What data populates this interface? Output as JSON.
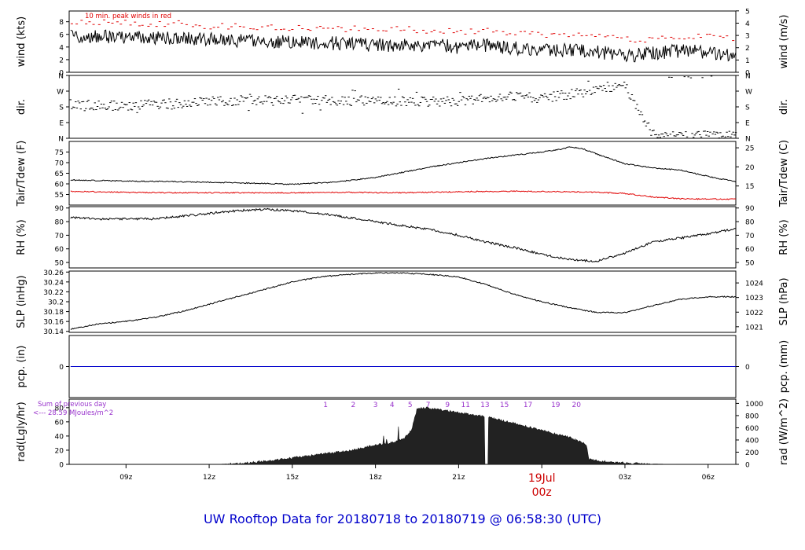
{
  "title": "UW Rooftop Data for 20180718  to  20180719 @ 06:58:30  (UTC)",
  "colors": {
    "primary": "#000000",
    "peak": "#e00000",
    "precip": "#0000cc",
    "annotation": "#9933cc",
    "date": "#cc0000",
    "title": "#0000cc",
    "axis": "#000000"
  },
  "chart_data": [
    {
      "type": "line",
      "panel": "wind",
      "ylabel_left": "wind (kts)",
      "ylabel_right": "wind (m/s)",
      "ylim": [
        0,
        9.7
      ],
      "yticks_left": [
        0,
        2,
        4,
        6,
        8
      ],
      "right_ticks": [
        {
          "label": "0",
          "v": 0
        },
        {
          "label": "1",
          "v": 1.944
        },
        {
          "label": "2",
          "v": 3.888
        },
        {
          "label": "3",
          "v": 5.832
        },
        {
          "label": "4",
          "v": 7.776
        },
        {
          "label": "5",
          "v": 9.72
        }
      ],
      "annotation": "10 min. peak winds in red",
      "series": [
        {
          "key": "wind",
          "style": "line",
          "color": "#000000",
          "x": [
            7.0,
            8.0,
            9.0,
            10.0,
            11.0,
            12.0,
            13.0,
            14.0,
            15.0,
            16.0,
            17.0,
            18.0,
            19.0,
            20.0,
            21.0,
            22.0,
            23.0,
            24.0,
            25.0,
            26.0,
            27.0,
            28.0,
            29.0,
            30.0,
            31.0
          ],
          "y": [
            5.8,
            5.6,
            5.6,
            5.4,
            5.5,
            5.2,
            5.0,
            4.9,
            4.8,
            4.6,
            4.6,
            4.3,
            4.3,
            4.3,
            4.0,
            4.2,
            3.8,
            3.6,
            3.5,
            3.3,
            2.6,
            3.0,
            3.4,
            3.2,
            2.8
          ],
          "noise": 1.1
        },
        {
          "key": "peak",
          "style": "dash",
          "color": "#e00000",
          "x": [
            7.0,
            8.0,
            9.0,
            10.0,
            11.0,
            12.0,
            13.0,
            14.0,
            15.0,
            16.0,
            17.0,
            18.0,
            19.0,
            20.0,
            21.0,
            22.0,
            23.0,
            24.0,
            25.0,
            26.0,
            27.0,
            28.0,
            29.0,
            30.0,
            31.0
          ],
          "y": [
            8.0,
            7.9,
            7.9,
            7.7,
            7.7,
            7.3,
            7.3,
            7.1,
            7.1,
            7.0,
            6.9,
            6.8,
            6.8,
            6.6,
            6.4,
            6.5,
            6.3,
            6.0,
            5.8,
            5.7,
            5.1,
            5.3,
            5.7,
            5.6,
            5.2
          ],
          "noise": 0.5
        }
      ]
    },
    {
      "type": "scatter",
      "panel": "dir",
      "ylabel_left": "dir.",
      "ylabel_right": "dir.",
      "ylim": [
        0,
        360
      ],
      "left_ticks": [
        {
          "label": "N",
          "v": 0
        },
        {
          "label": "E",
          "v": 90
        },
        {
          "label": "S",
          "v": 180
        },
        {
          "label": "W",
          "v": 270
        },
        {
          "label": "N",
          "v": 360
        }
      ],
      "right_ticks": [
        {
          "label": "N",
          "v": 0
        },
        {
          "label": "E",
          "v": 90
        },
        {
          "label": "S",
          "v": 180
        },
        {
          "label": "W",
          "v": 270
        },
        {
          "label": "N",
          "v": 360
        }
      ],
      "series": [
        {
          "key": "direction",
          "style": "ticks",
          "color": "#000000",
          "x": [
            7.0,
            8.0,
            9.0,
            10.0,
            11.0,
            12.0,
            13.0,
            14.0,
            15.0,
            16.0,
            17.0,
            18.0,
            19.0,
            20.0,
            21.0,
            22.0,
            23.0,
            24.0,
            25.0,
            26.0,
            27.0,
            28.0,
            29.0,
            30.0,
            31.0
          ],
          "y": [
            195,
            190,
            185,
            195,
            200,
            210,
            215,
            220,
            220,
            220,
            215,
            215,
            210,
            210,
            215,
            225,
            240,
            230,
            250,
            270,
            300,
            20,
            10,
            15,
            20
          ],
          "noise": 28
        }
      ]
    },
    {
      "type": "line",
      "panel": "temp",
      "ylabel_left": "Tair/Tdew (F)",
      "ylabel_right": "Tair/Tdew (C)",
      "ylim": [
        50,
        80
      ],
      "yticks_left": [
        55,
        60,
        65,
        70,
        75
      ],
      "right_ticks": [
        {
          "label": "15",
          "v": 59
        },
        {
          "label": "20",
          "v": 68
        },
        {
          "label": "25",
          "v": 77
        }
      ],
      "series": [
        {
          "key": "tair",
          "style": "line",
          "color": "#000000",
          "x": [
            7.0,
            9.0,
            11.0,
            13.0,
            15.0,
            16.5,
            18.0,
            19.0,
            20.0,
            21.0,
            22.0,
            23.0,
            24.0,
            24.7,
            25.0,
            25.5,
            26.0,
            27.0,
            28.0,
            29.0,
            30.0,
            31.0
          ],
          "y": [
            61.8,
            61.3,
            61.0,
            60.5,
            59.8,
            60.8,
            63.0,
            65.5,
            68.0,
            70.0,
            72.0,
            73.5,
            75.0,
            76.3,
            77.5,
            76.5,
            74.0,
            69.5,
            67.5,
            66.5,
            63.5,
            61.0
          ],
          "noise": 0.25
        },
        {
          "key": "tdew",
          "style": "line",
          "color": "#e00000",
          "x": [
            7.0,
            9.0,
            11.0,
            13.0,
            15.0,
            17.0,
            19.0,
            21.0,
            23.0,
            25.0,
            26.0,
            27.0,
            28.0,
            29.0,
            30.0,
            31.0
          ],
          "y": [
            56.5,
            56.0,
            55.8,
            55.8,
            55.8,
            56.0,
            55.8,
            56.3,
            56.5,
            56.3,
            56.0,
            55.5,
            53.8,
            53.0,
            52.8,
            52.8
          ],
          "noise": 0.25
        }
      ]
    },
    {
      "type": "line",
      "panel": "rh",
      "ylabel_left": "RH (%)",
      "ylabel_right": "RH (%)",
      "ylim": [
        46,
        91
      ],
      "yticks_left": [
        50,
        60,
        70,
        80,
        90
      ],
      "right_ticks": [
        {
          "label": "50",
          "v": 50
        },
        {
          "label": "60",
          "v": 60
        },
        {
          "label": "70",
          "v": 70
        },
        {
          "label": "80",
          "v": 80
        },
        {
          "label": "90",
          "v": 90
        }
      ],
      "series": [
        {
          "key": "rh",
          "style": "line",
          "color": "#000000",
          "x": [
            7.0,
            8.0,
            9.0,
            10.0,
            11.0,
            12.0,
            13.0,
            14.0,
            15.0,
            16.0,
            17.0,
            18.0,
            19.0,
            20.0,
            21.0,
            22.0,
            23.0,
            24.0,
            25.0,
            26.0,
            27.0,
            28.0,
            29.0,
            30.0,
            31.0
          ],
          "y": [
            83,
            82,
            82,
            82,
            84,
            86,
            88,
            89,
            88,
            86,
            83,
            80,
            77,
            74,
            70,
            65,
            61,
            56,
            52,
            51,
            57,
            65,
            68,
            71,
            75
          ],
          "noise": 0.8
        }
      ]
    },
    {
      "type": "line",
      "panel": "slp",
      "ylabel_left": "SLP (inHg)",
      "ylabel_right": "SLP (hPa)",
      "ylim": [
        30.138,
        30.262
      ],
      "yticks_left": [
        30.14,
        30.16,
        30.18,
        30.2,
        30.22,
        30.24,
        30.26
      ],
      "right_ticks": [
        {
          "label": "1021",
          "v": 30.1494
        },
        {
          "label": "1022",
          "v": 30.1789
        },
        {
          "label": "1023",
          "v": 30.2085
        },
        {
          "label": "1024",
          "v": 30.238
        }
      ],
      "series": [
        {
          "key": "slp",
          "style": "line",
          "color": "#000000",
          "x": [
            7.0,
            8.0,
            9.0,
            10.0,
            11.0,
            12.0,
            13.0,
            14.0,
            15.0,
            16.0,
            17.0,
            18.0,
            19.0,
            20.0,
            21.0,
            22.0,
            23.0,
            24.0,
            25.0,
            26.0,
            27.0,
            28.0,
            29.0,
            30.0,
            31.0
          ],
          "y": [
            30.145,
            30.155,
            30.16,
            30.168,
            30.18,
            30.195,
            30.21,
            30.225,
            30.24,
            30.25,
            30.255,
            30.258,
            30.258,
            30.255,
            30.25,
            30.235,
            30.215,
            30.2,
            30.188,
            30.178,
            30.178,
            30.192,
            30.205,
            30.21,
            30.21
          ],
          "noise": 0.0012
        }
      ]
    },
    {
      "type": "line",
      "panel": "pcp",
      "ylabel_left": "pcp. (in)",
      "ylabel_right": "pcp. (mm)",
      "ylim": [
        -1,
        1
      ],
      "yticks_left": [
        0
      ],
      "right_ticks": [
        {
          "label": "0",
          "v": 0
        }
      ],
      "series": [
        {
          "key": "pcp",
          "style": "line",
          "color": "#0000cc",
          "x": [
            7.0,
            31.0
          ],
          "y": [
            0,
            0
          ],
          "noise": 0
        }
      ]
    },
    {
      "type": "area",
      "panel": "rad",
      "ylabel_left": "rad(Lgly/hr)",
      "ylabel_right": "rad (W/m^2)",
      "ylim": [
        0,
        92
      ],
      "yticks_left": [
        0,
        20,
        40,
        60,
        80
      ],
      "right_ticks": [
        {
          "label": "0",
          "v": 0
        },
        {
          "label": "200",
          "v": 17.2
        },
        {
          "label": "400",
          "v": 34.4
        },
        {
          "label": "600",
          "v": 51.6
        },
        {
          "label": "800",
          "v": 68.8
        },
        {
          "label": "1000",
          "v": 86.0
        }
      ],
      "sum_label_1": "Sum of previous day",
      "sum_label_2": "<--- 28.59 MJoules/m^2",
      "hour_markers": [
        {
          "label": "1",
          "x": 16.2
        },
        {
          "label": "2",
          "x": 17.2
        },
        {
          "label": "3",
          "x": 18.0
        },
        {
          "label": "4",
          "x": 18.6
        },
        {
          "label": "5",
          "x": 19.25
        },
        {
          "label": "7",
          "x": 19.9
        },
        {
          "label": "9",
          "x": 20.6
        },
        {
          "label": "11",
          "x": 21.25
        },
        {
          "label": "13",
          "x": 21.95
        },
        {
          "label": "15",
          "x": 22.65
        },
        {
          "label": "17",
          "x": 23.5
        },
        {
          "label": "19",
          "x": 24.5
        },
        {
          "label": "20",
          "x": 25.25
        }
      ],
      "series": [
        {
          "key": "radiation",
          "style": "area",
          "color": "#000000",
          "x": [
            7.0,
            12.0,
            12.5,
            13.0,
            13.5,
            14.0,
            15.0,
            16.0,
            17.0,
            17.5,
            18.0,
            18.5,
            19.0,
            19.3,
            19.5,
            19.8,
            20.0,
            21.0,
            21.5,
            22.0,
            23.0,
            24.0,
            25.0,
            25.6,
            25.7,
            26.0,
            26.5,
            27.0,
            27.5,
            28.0,
            28.5,
            29.0,
            31.0
          ],
          "y": [
            0,
            0,
            0.3,
            1.0,
            2.5,
            4.5,
            9,
            14,
            19,
            23,
            27,
            30,
            35,
            48,
            78,
            80,
            79,
            73,
            70,
            67,
            58,
            48,
            38,
            28,
            7,
            5,
            3,
            2,
            1,
            0.5,
            0.2,
            0,
            0
          ],
          "noise": 1.5
        }
      ]
    }
  ],
  "x_axis": {
    "xlim": [
      6.95,
      31.0
    ],
    "ticks": [
      {
        "label": "09z",
        "v": 9
      },
      {
        "label": "12z",
        "v": 12
      },
      {
        "label": "15z",
        "v": 15
      },
      {
        "label": "18z",
        "v": 18
      },
      {
        "label": "21z",
        "v": 21
      },
      {
        "label": "03z",
        "v": 27
      },
      {
        "label": "06z",
        "v": 30
      }
    ],
    "date_label_top": "19Jul",
    "date_label_bottom": "00z",
    "date_tick_v": 24
  }
}
